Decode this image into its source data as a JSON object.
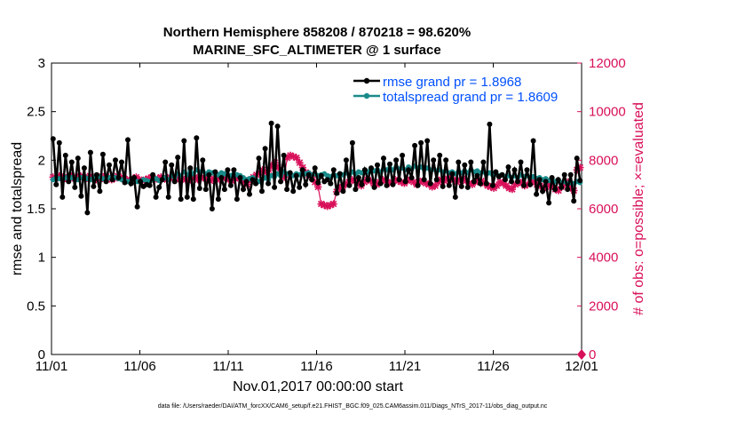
{
  "chart_data": {
    "type": "line",
    "title_line1": "Northern Hemisphere 858208 / 870218 = 98.620%",
    "title_line2": "MARINE_SFC_ALTIMETER @ 1 surface",
    "xlabel": "Nov.01,2017 00:00:00 start",
    "ylabel_left": "rmse and totalspread",
    "ylabel_right": "# of obs: o=possible; ×=evaluated",
    "footer": "data file: /Users/raeder/DAI/ATM_forcXX/CAM6_setup/f.e21.FHIST_BGC.f09_025.CAM6assim.011/Diags_NTrS_2017-11/obs_diag_output.nc",
    "xlim": [
      0,
      30
    ],
    "ylim_left": [
      0,
      3
    ],
    "ylim_right": [
      0,
      12000
    ],
    "x_ticks": [
      0,
      5,
      10,
      15,
      20,
      25,
      30
    ],
    "x_tick_labels": [
      "11/01",
      "11/06",
      "11/11",
      "11/16",
      "11/21",
      "11/26",
      "12/01"
    ],
    "y_left_ticks": [
      "0",
      "0.5",
      "1",
      "1.5",
      "2",
      "2.5",
      "3"
    ],
    "y_right_ticks": [
      "0",
      "2000",
      "4000",
      "6000",
      "8000",
      "10000",
      "12000"
    ],
    "colors": {
      "rmse": "#000000",
      "spread": "#1a8a8a",
      "obs": "#d8105a",
      "legend_text": "#0050ff"
    },
    "legend_position": "top-right",
    "series": [
      {
        "name": "rmse grand pr = 1.8968",
        "axis": "left",
        "values": [
          2.22,
          1.75,
          2.18,
          1.62,
          2.05,
          1.78,
          1.98,
          1.72,
          2.02,
          1.63,
          1.92,
          1.46,
          2.08,
          1.73,
          1.85,
          1.68,
          2.06,
          1.78,
          1.95,
          1.8,
          2.0,
          1.82,
          1.98,
          1.77,
          2.21,
          1.76,
          1.82,
          1.52,
          1.78,
          1.73,
          1.75,
          1.74,
          1.85,
          1.62,
          1.72,
          1.8,
          1.98,
          1.62,
          1.95,
          1.78,
          2.03,
          1.6,
          2.2,
          1.62,
          1.92,
          1.6,
          2.23,
          1.71,
          2.0,
          1.7,
          1.85,
          1.5,
          1.88,
          1.6,
          1.82,
          1.7,
          1.9,
          1.74,
          1.9,
          1.6,
          1.82,
          1.7,
          1.78,
          1.65,
          1.8,
          1.76,
          2.02,
          1.68,
          2.12,
          1.76,
          2.38,
          1.72,
          2.35,
          1.78,
          2.05,
          1.7,
          1.87,
          1.68,
          1.84,
          1.72,
          1.9,
          1.75,
          1.85,
          1.8,
          1.92,
          1.77,
          1.84,
          1.78,
          1.8,
          1.76,
          1.9,
          1.66,
          1.86,
          1.68,
          2.0,
          1.74,
          2.18,
          1.7,
          1.82,
          1.75,
          1.9,
          1.8,
          1.92,
          1.72,
          1.95,
          1.76,
          2.02,
          1.74,
          1.96,
          1.75,
          2.0,
          1.8,
          2.05,
          1.78,
          1.9,
          1.82,
          2.15,
          1.74,
          2.18,
          1.8,
          2.2,
          1.76,
          2.0,
          1.8,
          2.05,
          1.73,
          2.0,
          1.74,
          1.86,
          1.62,
          1.98,
          1.73,
          1.95,
          1.72,
          1.98,
          1.78,
          1.84,
          1.76,
          1.98,
          1.76,
          2.37,
          1.74,
          1.88,
          1.83,
          1.85,
          1.8,
          1.93,
          1.78,
          1.9,
          1.78,
          1.98,
          1.74,
          1.9,
          1.75,
          2.2,
          1.65,
          1.8,
          1.68,
          1.78,
          1.56,
          1.82,
          1.7,
          1.8,
          1.72,
          1.85,
          1.7,
          1.85,
          1.58,
          2.02,
          1.79
        ]
      },
      {
        "name": "totalspread grand pr = 1.8609",
        "axis": "left",
        "values": [
          1.8,
          1.82,
          1.81,
          1.8,
          1.82,
          1.83,
          1.82,
          1.81,
          1.8,
          1.82,
          1.83,
          1.81,
          1.8,
          1.82,
          1.82,
          1.83,
          1.81,
          1.8,
          1.82,
          1.83,
          1.82,
          1.81,
          1.8,
          1.79,
          1.78,
          1.79,
          1.8,
          1.78,
          1.78,
          1.8,
          1.79,
          1.78,
          1.8,
          1.81,
          1.79,
          1.8,
          1.82,
          1.8,
          1.84,
          1.82,
          1.86,
          1.84,
          1.88,
          1.85,
          1.89,
          1.86,
          1.9,
          1.88,
          1.89,
          1.86,
          1.88,
          1.87,
          1.86,
          1.85,
          1.87,
          1.86,
          1.85,
          1.84,
          1.86,
          1.85,
          1.84,
          1.82,
          1.8,
          1.81,
          1.82,
          1.8,
          1.78,
          1.8,
          1.82,
          1.8,
          1.84,
          1.83,
          1.86,
          1.84,
          1.88,
          1.86,
          1.85,
          1.84,
          1.86,
          1.85,
          1.88,
          1.86,
          1.87,
          1.85,
          1.86,
          1.84,
          1.85,
          1.86,
          1.84,
          1.83,
          1.85,
          1.84,
          1.86,
          1.85,
          1.87,
          1.85,
          1.88,
          1.86,
          1.88,
          1.87,
          1.9,
          1.88,
          1.91,
          1.89,
          1.9,
          1.88,
          1.91,
          1.9,
          1.92,
          1.9,
          1.93,
          1.91,
          1.92,
          1.9,
          1.93,
          1.91,
          1.94,
          1.92,
          1.93,
          1.91,
          1.92,
          1.9,
          1.91,
          1.89,
          1.9,
          1.88,
          1.89,
          1.87,
          1.88,
          1.86,
          1.88,
          1.87,
          1.89,
          1.87,
          1.9,
          1.88,
          1.89,
          1.87,
          1.88,
          1.86,
          1.87,
          1.85,
          1.86,
          1.84,
          1.85,
          1.83,
          1.84,
          1.82,
          1.84,
          1.82,
          1.85,
          1.83,
          1.84,
          1.82,
          1.83,
          1.81,
          1.82,
          1.8,
          1.81,
          1.79,
          1.8,
          1.78,
          1.79,
          1.77,
          1.78,
          1.76,
          1.77,
          1.76,
          1.78,
          1.77
        ]
      },
      {
        "name": "obs possible/evaluated",
        "axis": "right",
        "values": [
          7300,
          7250,
          7350,
          7300,
          7250,
          7300,
          7350,
          7250,
          7300,
          7350,
          7300,
          7250,
          7350,
          7300,
          7200,
          7300,
          7250,
          7350,
          7300,
          7200,
          7250,
          7350,
          7300,
          7250,
          7200,
          7150,
          7250,
          7300,
          7200,
          7150,
          7200,
          7250,
          7300,
          7200,
          7250,
          7300,
          7250,
          7200,
          7300,
          7250,
          7200,
          7300,
          7250,
          7200,
          7150,
          7250,
          7300,
          7200,
          7250,
          7300,
          7200,
          7150,
          7250,
          7300,
          7200,
          7250,
          7300,
          7200,
          7150,
          7250,
          7300,
          7200,
          7100,
          7000,
          7200,
          7300,
          7400,
          7500,
          7600,
          7500,
          7600,
          7800,
          7900,
          7700,
          7500,
          7300,
          8100,
          8200,
          8150,
          8100,
          7900,
          7700,
          7500,
          7400,
          7300,
          7100,
          6900,
          6200,
          6150,
          6100,
          6150,
          6200,
          6700,
          6850,
          6900,
          7000,
          7100,
          7200,
          7150,
          7050,
          6950,
          7100,
          7200,
          7150,
          7050,
          7000,
          7100,
          7200,
          7150,
          7050,
          7100,
          7200,
          7150,
          7100,
          7050,
          7150,
          7200,
          7100,
          7000,
          7100,
          7150,
          7050,
          7000,
          6900,
          6950,
          7100,
          7200,
          7150,
          7250,
          7300,
          7200,
          7100,
          7200,
          7250,
          7150,
          7050,
          7000,
          7100,
          7200,
          7150,
          7050,
          6950,
          6900,
          6850,
          6950,
          7100,
          7050,
          6950,
          6850,
          6800,
          7000,
          7100,
          7050,
          6950,
          7000,
          7100,
          7150,
          7000,
          6950,
          6850,
          6900,
          7000,
          6950,
          6800,
          6750,
          6900,
          7000,
          7100,
          6850,
          6750,
          7600,
          7700
        ]
      }
    ]
  }
}
